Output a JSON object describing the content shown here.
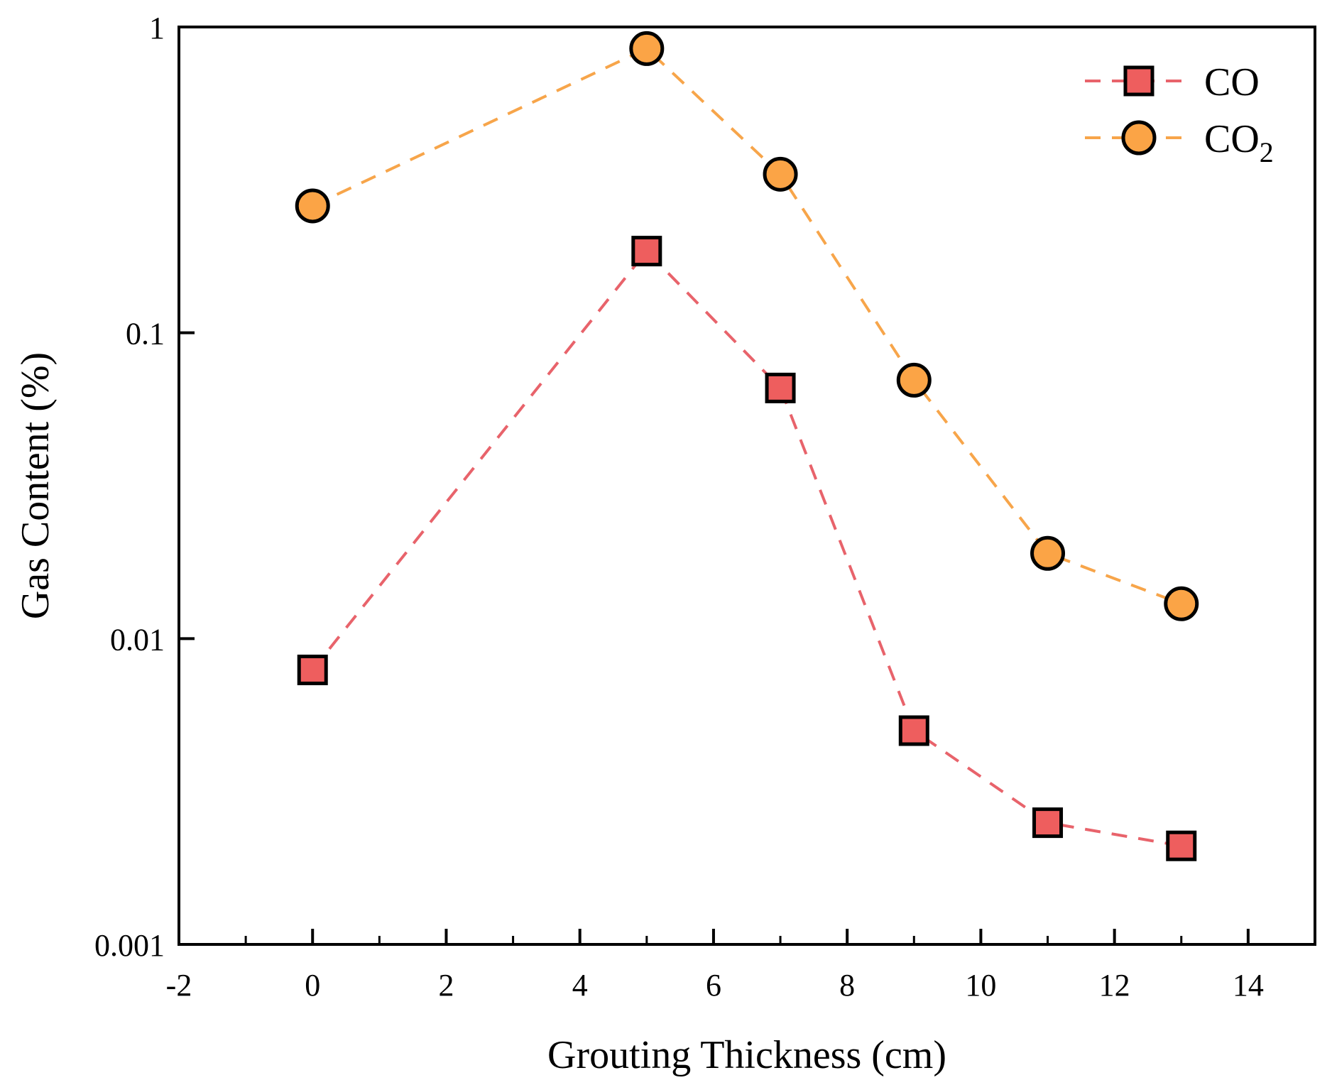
{
  "chart_data": {
    "type": "line",
    "title": "",
    "xlabel": "Grouting Thickness (cm)",
    "ylabel": "Gas Content (%)",
    "xlim": [
      -2,
      15
    ],
    "ylim": [
      0.001,
      1
    ],
    "yscale": "log",
    "x_ticks": [
      -2,
      0,
      2,
      4,
      6,
      8,
      10,
      12,
      14
    ],
    "x_tick_labels": [
      "-2",
      "0",
      "2",
      "4",
      "6",
      "8",
      "10",
      "12",
      "14"
    ],
    "y_ticks": [
      0.001,
      0.01,
      0.1,
      1
    ],
    "y_tick_labels": [
      "0.001",
      "0.01",
      "0.1",
      "1"
    ],
    "grid": false,
    "legend_position": "top-right",
    "series": [
      {
        "name": "CO",
        "legend_main": "CO",
        "legend_sub": "",
        "marker": "square",
        "line_style": "dashed",
        "line_color": "#e8636b",
        "marker_fill": "#ee5e5e",
        "x": [
          0,
          5,
          7,
          9,
          11,
          13
        ],
        "values": [
          0.0079,
          0.185,
          0.066,
          0.005,
          0.0025,
          0.0021
        ]
      },
      {
        "name": "CO2",
        "legend_main": "CO",
        "legend_sub": "2",
        "marker": "circle",
        "line_style": "dashed",
        "line_color": "#f7a54a",
        "marker_fill": "#fba446",
        "x": [
          0,
          5,
          7,
          9,
          11,
          13
        ],
        "values": [
          0.26,
          0.85,
          0.33,
          0.07,
          0.019,
          0.013
        ]
      }
    ]
  }
}
